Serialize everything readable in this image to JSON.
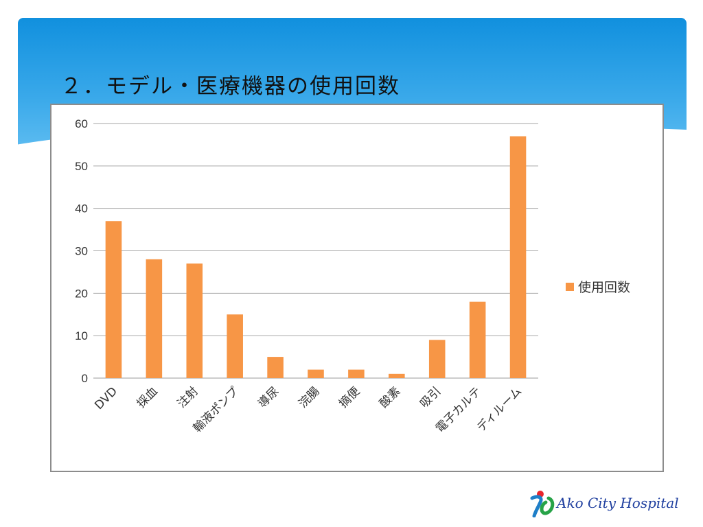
{
  "slide": {
    "title": "２．モデル・医療機器の使用回数",
    "logo_text": "Ako City Hospital"
  },
  "colors": {
    "bar": "#f79646",
    "banner_top": "#1190de",
    "banner_bottom": "#7ccdf7"
  },
  "chart_data": {
    "type": "bar",
    "categories": [
      "DVD",
      "採血",
      "注射",
      "輸液ポンプ",
      "導尿",
      "浣腸",
      "摘便",
      "酸素",
      "吸引",
      "電子カルテ",
      "ディルーム"
    ],
    "series": [
      {
        "name": "使用回数",
        "values": [
          37,
          28,
          27,
          15,
          5,
          2,
          2,
          1,
          9,
          18,
          57
        ]
      }
    ],
    "ylim": [
      0,
      60
    ],
    "yticks": [
      0,
      10,
      20,
      30,
      40,
      50,
      60
    ],
    "grid": true,
    "legend": "right"
  }
}
